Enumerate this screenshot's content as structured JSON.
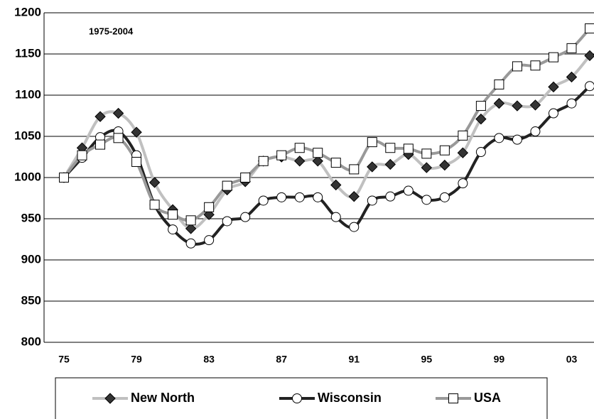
{
  "chart_data": {
    "type": "line",
    "annotation": "1975-2004",
    "categories": [
      "75",
      null,
      null,
      null,
      "79",
      null,
      null,
      null,
      "83",
      null,
      null,
      null,
      "87",
      null,
      null,
      null,
      "91",
      null,
      null,
      null,
      "95",
      null,
      null,
      null,
      "99",
      null,
      null,
      null,
      "03",
      null
    ],
    "series": [
      {
        "name": "New North",
        "color": "#c0c0c0",
        "marker": "diamond",
        "marker_color": "#333333",
        "values": [
          1000,
          1036,
          1074,
          1078,
          1055,
          994,
          961,
          938,
          955,
          985,
          995,
          1020,
          1025,
          1020,
          1020,
          991,
          977,
          1013,
          1016,
          1028,
          1012,
          1015,
          1030,
          1071,
          1090,
          1087,
          1088,
          1110,
          1122,
          1148
        ]
      },
      {
        "name": "Wisconsin",
        "color": "#222222",
        "marker": "circle",
        "marker_color": "#ffffff",
        "values": [
          1000,
          1024,
          1049,
          1056,
          1027,
          967,
          937,
          920,
          924,
          947,
          952,
          972,
          976,
          976,
          976,
          952,
          940,
          972,
          977,
          984,
          973,
          976,
          993,
          1031,
          1048,
          1046,
          1056,
          1078,
          1090,
          1111
        ]
      },
      {
        "name": "USA",
        "color": "#999999",
        "marker": "square",
        "marker_color": "#ffffff",
        "values": [
          1000,
          1027,
          1040,
          1048,
          1019,
          967,
          955,
          948,
          964,
          990,
          1000,
          1020,
          1027,
          1036,
          1030,
          1018,
          1010,
          1043,
          1036,
          1035,
          1029,
          1033,
          1051,
          1087,
          1113,
          1135,
          1136,
          1146,
          1157,
          1181
        ]
      }
    ],
    "ylim": [
      800,
      1200
    ],
    "yticks": [
      800,
      850,
      900,
      950,
      1000,
      1050,
      1100,
      1150,
      1200
    ],
    "grid": true,
    "legend": "bottom"
  }
}
